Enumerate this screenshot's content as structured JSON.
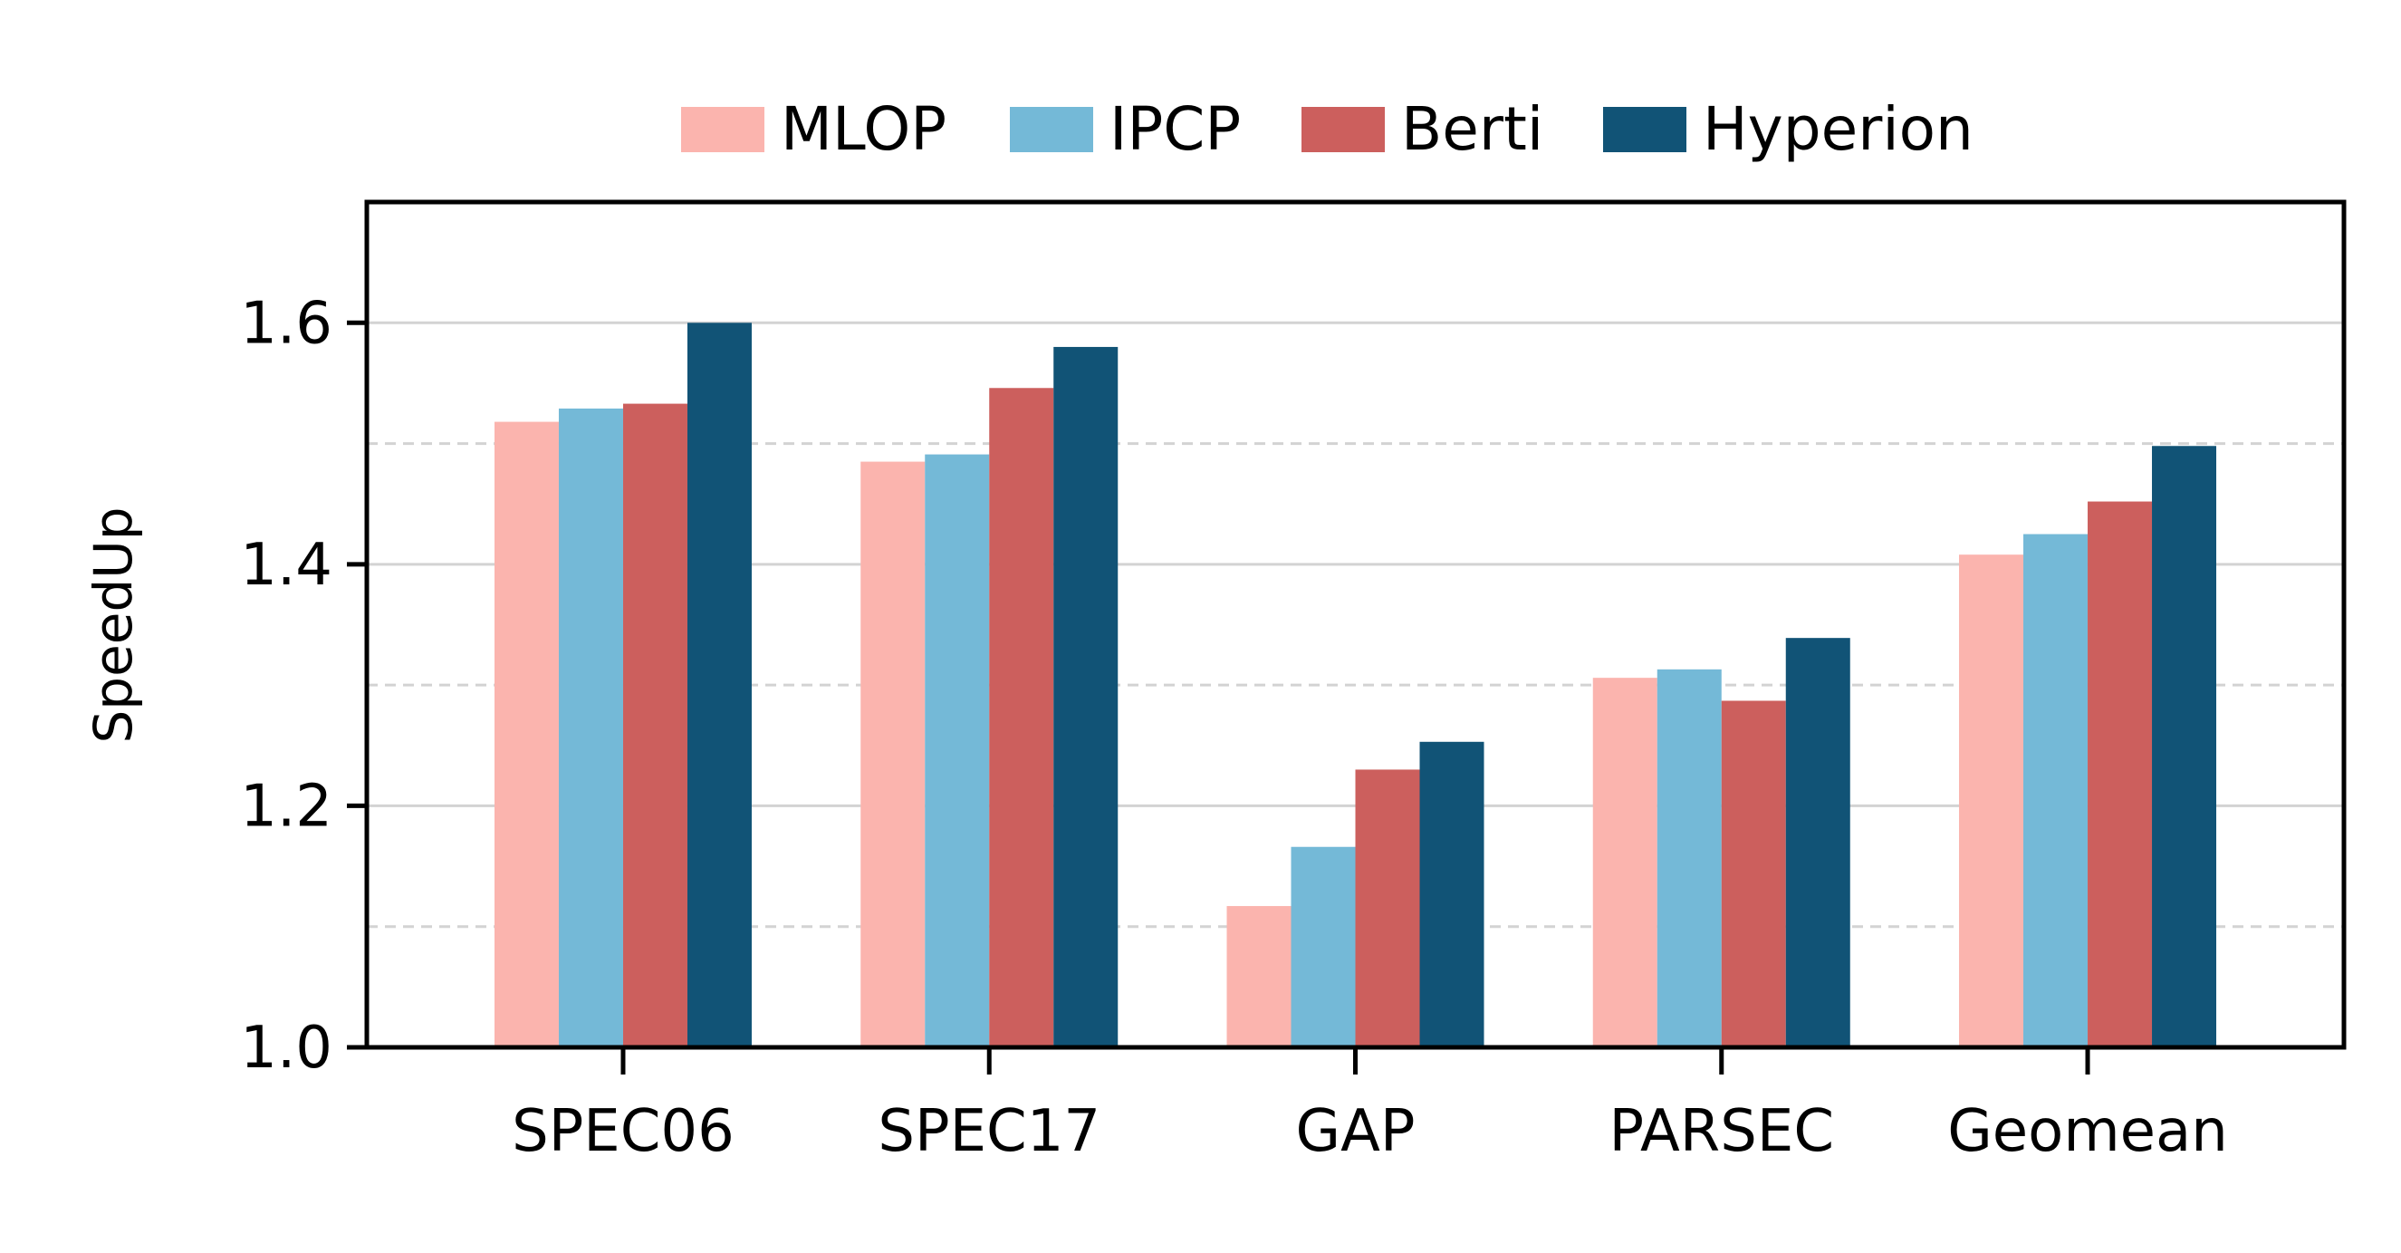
{
  "chart_data": {
    "type": "bar",
    "ylabel": "SpeedUp",
    "xlabel": "",
    "ylim": [
      1.0,
      1.7
    ],
    "yticks": [
      "1.0",
      "1.2",
      "1.4",
      "1.6"
    ],
    "grid": {
      "major": "solid",
      "minor": "dashed",
      "axis": "y"
    },
    "legend_position": "top-center",
    "categories": [
      "SPEC06",
      "SPEC17",
      "GAP",
      "PARSEC",
      "Geomean"
    ],
    "series": [
      {
        "name": "MLOP",
        "color": "#fbb4ae",
        "values": [
          1.518,
          1.485,
          1.117,
          1.306,
          1.408
        ]
      },
      {
        "name": "IPCP",
        "color": "#74b9d7",
        "values": [
          1.529,
          1.491,
          1.166,
          1.313,
          1.425
        ]
      },
      {
        "name": "Berti",
        "color": "#cc5f5d",
        "values": [
          1.533,
          1.546,
          1.23,
          1.287,
          1.452
        ]
      },
      {
        "name": "Hyperion",
        "color": "#115376",
        "values": [
          1.6,
          1.58,
          1.253,
          1.339,
          1.498
        ]
      }
    ]
  }
}
